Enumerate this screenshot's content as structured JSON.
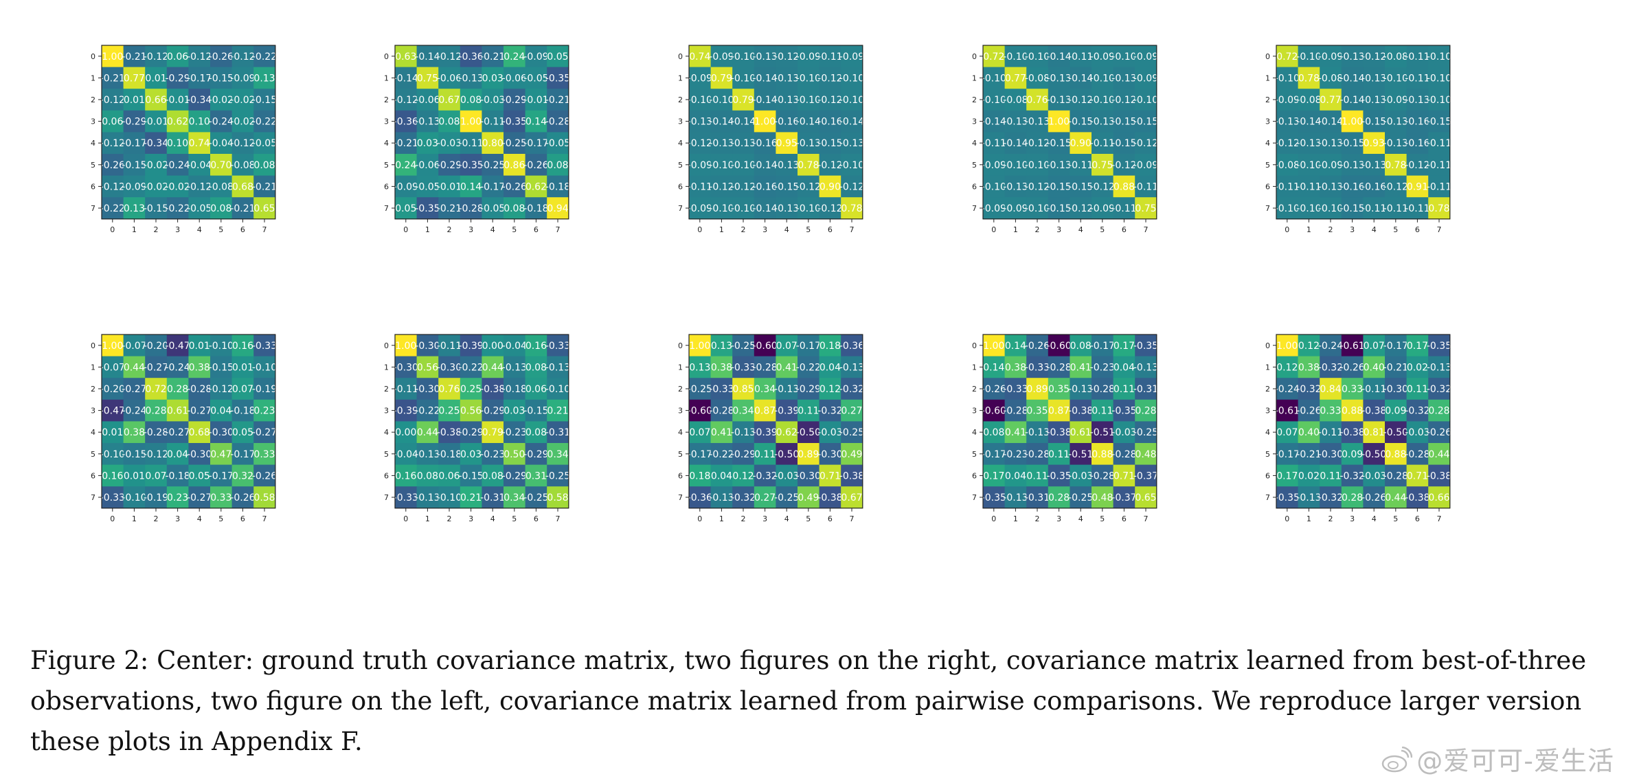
{
  "caption": "Figure 2: Center: ground truth covariance matrix, two figures on the right, covariance matrix learned from best-of-three observations, two figure on the left, covariance matrix learned from pairwise comparisons. We reproduce larger version these plots in Appendix F.",
  "watermark": "@爱可可-爱生活",
  "colors": {
    "low": "#3b4f8b",
    "mid": "#21918c",
    "high": "#fde725"
  },
  "chart_data": [
    {
      "type": "heatmap",
      "ticks": [
        "0",
        "1",
        "2",
        "3",
        "4",
        "5",
        "6",
        "7"
      ],
      "values": [
        [
          1.0,
          -0.21,
          -0.12,
          0.06,
          -0.12,
          -0.26,
          -0.12,
          -0.22
        ],
        [
          -0.21,
          0.77,
          0.01,
          -0.29,
          -0.17,
          -0.15,
          -0.09,
          0.13
        ],
        [
          -0.12,
          0.01,
          0.66,
          -0.01,
          -0.34,
          -0.02,
          -0.02,
          -0.15
        ],
        [
          0.06,
          -0.29,
          -0.01,
          0.62,
          0.1,
          -0.24,
          -0.02,
          -0.22
        ],
        [
          -0.12,
          -0.17,
          -0.34,
          0.1,
          0.74,
          -0.04,
          -0.12,
          -0.05
        ],
        [
          -0.26,
          -0.15,
          -0.02,
          -0.24,
          -0.04,
          0.7,
          -0.08,
          0.08
        ],
        [
          -0.12,
          -0.09,
          -0.02,
          -0.02,
          -0.12,
          -0.08,
          0.68,
          -0.21
        ],
        [
          -0.22,
          0.13,
          -0.15,
          -0.22,
          -0.05,
          0.08,
          -0.21,
          0.65
        ]
      ]
    },
    {
      "type": "heatmap",
      "ticks": [
        "0",
        "1",
        "2",
        "3",
        "4",
        "5",
        "6",
        "7"
      ],
      "values": [
        [
          0.63,
          -0.14,
          -0.12,
          -0.36,
          -0.21,
          0.24,
          -0.09,
          0.05
        ],
        [
          -0.14,
          0.75,
          -0.06,
          -0.13,
          0.03,
          -0.06,
          -0.05,
          -0.35
        ],
        [
          -0.12,
          -0.06,
          0.67,
          0.08,
          -0.03,
          -0.29,
          -0.01,
          -0.21
        ],
        [
          -0.36,
          -0.13,
          0.08,
          1.0,
          -0.11,
          -0.35,
          0.14,
          -0.28
        ],
        [
          -0.21,
          0.03,
          -0.03,
          -0.11,
          0.8,
          -0.25,
          -0.17,
          -0.05
        ],
        [
          0.24,
          -0.06,
          -0.29,
          -0.35,
          -0.25,
          0.86,
          -0.26,
          0.08
        ],
        [
          -0.09,
          -0.05,
          -0.01,
          0.14,
          -0.17,
          -0.26,
          0.62,
          -0.18
        ],
        [
          0.05,
          -0.35,
          -0.21,
          -0.28,
          -0.05,
          0.08,
          -0.18,
          0.94
        ]
      ]
    },
    {
      "type": "heatmap",
      "ticks": [
        "0",
        "1",
        "2",
        "3",
        "4",
        "5",
        "6",
        "7"
      ],
      "values": [
        [
          0.74,
          -0.09,
          -0.1,
          -0.13,
          -0.12,
          -0.09,
          -0.11,
          -0.09
        ],
        [
          -0.09,
          0.79,
          -0.1,
          -0.14,
          -0.13,
          -0.1,
          -0.12,
          -0.1
        ],
        [
          -0.1,
          -0.1,
          0.79,
          -0.14,
          -0.13,
          -0.1,
          -0.12,
          -0.1
        ],
        [
          -0.13,
          -0.14,
          -0.14,
          1.0,
          -0.16,
          -0.14,
          -0.16,
          -0.14
        ],
        [
          -0.12,
          -0.13,
          -0.13,
          -0.16,
          0.95,
          -0.13,
          -0.15,
          -0.13
        ],
        [
          -0.09,
          -0.1,
          -0.1,
          -0.14,
          -0.13,
          0.78,
          -0.12,
          -0.1
        ],
        [
          -0.11,
          -0.12,
          -0.12,
          -0.16,
          -0.15,
          -0.12,
          0.9,
          -0.12
        ],
        [
          -0.09,
          -0.1,
          -0.1,
          -0.14,
          -0.13,
          -0.1,
          -0.12,
          0.78
        ]
      ]
    },
    {
      "type": "heatmap",
      "ticks": [
        "0",
        "1",
        "2",
        "3",
        "4",
        "5",
        "6",
        "7"
      ],
      "values": [
        [
          0.72,
          -0.1,
          -0.1,
          -0.14,
          -0.11,
          -0.09,
          -0.1,
          -0.09
        ],
        [
          -0.1,
          0.77,
          -0.08,
          -0.13,
          -0.14,
          -0.1,
          -0.13,
          -0.09
        ],
        [
          -0.1,
          -0.08,
          0.76,
          -0.13,
          -0.12,
          -0.1,
          -0.12,
          -0.1
        ],
        [
          -0.14,
          -0.13,
          -0.13,
          1.0,
          -0.15,
          -0.13,
          -0.15,
          -0.15
        ],
        [
          -0.11,
          -0.14,
          -0.12,
          -0.15,
          0.9,
          -0.11,
          -0.15,
          -0.12
        ],
        [
          -0.09,
          -0.1,
          -0.1,
          -0.13,
          -0.11,
          0.75,
          -0.12,
          -0.09
        ],
        [
          -0.1,
          -0.13,
          -0.12,
          -0.15,
          -0.15,
          -0.12,
          0.88,
          -0.11
        ],
        [
          -0.09,
          -0.09,
          -0.1,
          -0.15,
          -0.12,
          -0.09,
          -0.11,
          0.75
        ]
      ]
    },
    {
      "type": "heatmap",
      "ticks": [
        "0",
        "1",
        "2",
        "3",
        "4",
        "5",
        "6",
        "7"
      ],
      "values": [
        [
          0.72,
          -0.1,
          -0.09,
          -0.13,
          -0.12,
          -0.08,
          -0.11,
          -0.1
        ],
        [
          -0.1,
          0.78,
          -0.08,
          -0.14,
          -0.13,
          -0.1,
          -0.11,
          -0.1
        ],
        [
          -0.09,
          -0.08,
          0.77,
          -0.14,
          -0.13,
          -0.09,
          -0.13,
          -0.1
        ],
        [
          -0.13,
          -0.14,
          -0.14,
          1.0,
          -0.15,
          -0.13,
          -0.16,
          -0.15
        ],
        [
          -0.12,
          -0.13,
          -0.13,
          -0.15,
          0.93,
          -0.13,
          -0.16,
          -0.11
        ],
        [
          -0.08,
          -0.1,
          -0.09,
          -0.13,
          -0.13,
          0.78,
          -0.12,
          -0.11
        ],
        [
          -0.11,
          -0.11,
          -0.13,
          -0.16,
          -0.16,
          -0.12,
          0.91,
          -0.11
        ],
        [
          -0.1,
          -0.1,
          -0.1,
          -0.15,
          -0.11,
          -0.11,
          -0.11,
          0.78
        ]
      ]
    },
    {
      "type": "heatmap",
      "ticks": [
        "0",
        "1",
        "2",
        "3",
        "4",
        "5",
        "6",
        "7"
      ],
      "values": [
        [
          1.0,
          -0.07,
          -0.2,
          -0.47,
          0.01,
          -0.1,
          0.16,
          -0.33
        ],
        [
          -0.07,
          0.44,
          -0.27,
          -0.24,
          0.38,
          -0.15,
          0.01,
          -0.1
        ],
        [
          -0.2,
          -0.27,
          0.72,
          0.28,
          -0.28,
          -0.12,
          0.07,
          -0.19
        ],
        [
          -0.47,
          -0.24,
          0.28,
          0.61,
          -0.27,
          0.04,
          -0.18,
          0.23
        ],
        [
          0.01,
          0.38,
          -0.28,
          -0.27,
          0.68,
          -0.3,
          0.05,
          -0.27
        ],
        [
          -0.1,
          -0.15,
          -0.12,
          0.04,
          -0.3,
          0.47,
          -0.17,
          0.33
        ],
        [
          0.16,
          0.01,
          0.07,
          -0.18,
          0.05,
          -0.17,
          0.32,
          -0.26
        ],
        [
          -0.33,
          -0.1,
          -0.19,
          0.23,
          -0.27,
          0.33,
          -0.26,
          0.58
        ]
      ]
    },
    {
      "type": "heatmap",
      "ticks": [
        "0",
        "1",
        "2",
        "3",
        "4",
        "5",
        "6",
        "7"
      ],
      "values": [
        [
          1.0,
          -0.3,
          -0.11,
          -0.39,
          0.0,
          -0.04,
          0.16,
          -0.33
        ],
        [
          -0.3,
          0.56,
          -0.3,
          -0.22,
          0.44,
          -0.13,
          0.08,
          -0.13
        ],
        [
          -0.11,
          -0.3,
          0.76,
          0.25,
          -0.38,
          -0.18,
          0.06,
          -0.1
        ],
        [
          -0.39,
          -0.22,
          0.25,
          0.56,
          -0.29,
          0.03,
          -0.15,
          0.21
        ],
        [
          0.0,
          0.44,
          -0.38,
          -0.29,
          0.79,
          -0.23,
          0.08,
          -0.31
        ],
        [
          -0.04,
          -0.13,
          -0.18,
          0.03,
          -0.23,
          0.5,
          -0.29,
          0.34
        ],
        [
          0.16,
          0.08,
          0.06,
          -0.15,
          0.08,
          -0.29,
          0.31,
          -0.25
        ],
        [
          -0.33,
          -0.13,
          -0.1,
          0.21,
          -0.31,
          0.34,
          -0.25,
          0.58
        ]
      ]
    },
    {
      "type": "heatmap",
      "ticks": [
        "0",
        "1",
        "2",
        "3",
        "4",
        "5",
        "6",
        "7"
      ],
      "values": [
        [
          1.0,
          0.13,
          -0.25,
          -0.6,
          0.07,
          -0.17,
          0.18,
          -0.36
        ],
        [
          0.13,
          0.38,
          -0.33,
          -0.28,
          0.41,
          -0.22,
          0.04,
          -0.13
        ],
        [
          -0.25,
          -0.33,
          0.85,
          0.34,
          -0.13,
          -0.29,
          0.12,
          -0.32
        ],
        [
          -0.6,
          -0.28,
          0.34,
          0.87,
          -0.39,
          0.11,
          -0.32,
          0.27
        ],
        [
          0.07,
          0.41,
          -0.13,
          -0.39,
          0.62,
          -0.5,
          -0.03,
          -0.25
        ],
        [
          -0.17,
          -0.22,
          -0.29,
          0.11,
          -0.5,
          0.89,
          -0.3,
          0.49
        ],
        [
          0.18,
          0.04,
          0.12,
          -0.32,
          -0.03,
          -0.3,
          0.71,
          -0.38
        ],
        [
          -0.36,
          -0.13,
          -0.32,
          0.27,
          -0.25,
          0.49,
          -0.38,
          0.67
        ]
      ]
    },
    {
      "type": "heatmap",
      "ticks": [
        "0",
        "1",
        "2",
        "3",
        "4",
        "5",
        "6",
        "7"
      ],
      "values": [
        [
          1.0,
          0.14,
          -0.26,
          -0.6,
          0.08,
          -0.17,
          0.17,
          -0.35
        ],
        [
          0.14,
          0.38,
          -0.33,
          -0.28,
          0.41,
          -0.23,
          0.04,
          -0.13
        ],
        [
          -0.26,
          -0.33,
          0.89,
          0.35,
          -0.13,
          -0.28,
          0.11,
          -0.31
        ],
        [
          -0.6,
          -0.28,
          0.35,
          0.87,
          -0.38,
          0.11,
          -0.35,
          0.28
        ],
        [
          0.08,
          0.41,
          -0.13,
          -0.38,
          0.61,
          -0.51,
          -0.03,
          -0.25
        ],
        [
          -0.17,
          -0.23,
          -0.28,
          0.11,
          -0.51,
          0.88,
          -0.28,
          0.48
        ],
        [
          0.17,
          0.04,
          0.11,
          -0.35,
          -0.03,
          -0.28,
          0.71,
          -0.37
        ],
        [
          -0.35,
          -0.13,
          -0.31,
          0.28,
          -0.25,
          0.48,
          -0.37,
          0.65
        ]
      ]
    },
    {
      "type": "heatmap",
      "ticks": [
        "0",
        "1",
        "2",
        "3",
        "4",
        "5",
        "6",
        "7"
      ],
      "values": [
        [
          1.0,
          0.12,
          -0.24,
          -0.61,
          0.07,
          -0.17,
          0.17,
          -0.35
        ],
        [
          0.12,
          0.38,
          -0.32,
          -0.26,
          0.4,
          -0.21,
          0.02,
          -0.13
        ],
        [
          -0.24,
          -0.32,
          0.84,
          0.33,
          -0.11,
          -0.3,
          0.11,
          -0.32
        ],
        [
          -0.61,
          -0.26,
          0.33,
          0.88,
          -0.38,
          0.09,
          -0.32,
          0.28
        ],
        [
          0.07,
          0.4,
          -0.11,
          -0.38,
          0.81,
          -0.5,
          -0.03,
          -0.26
        ],
        [
          -0.17,
          -0.21,
          -0.3,
          0.09,
          -0.5,
          0.88,
          -0.28,
          0.44
        ],
        [
          0.17,
          0.02,
          0.11,
          -0.32,
          -0.03,
          -0.28,
          0.71,
          -0.38
        ],
        [
          -0.35,
          -0.13,
          -0.32,
          0.28,
          -0.26,
          0.44,
          -0.38,
          0.66
        ]
      ]
    }
  ]
}
